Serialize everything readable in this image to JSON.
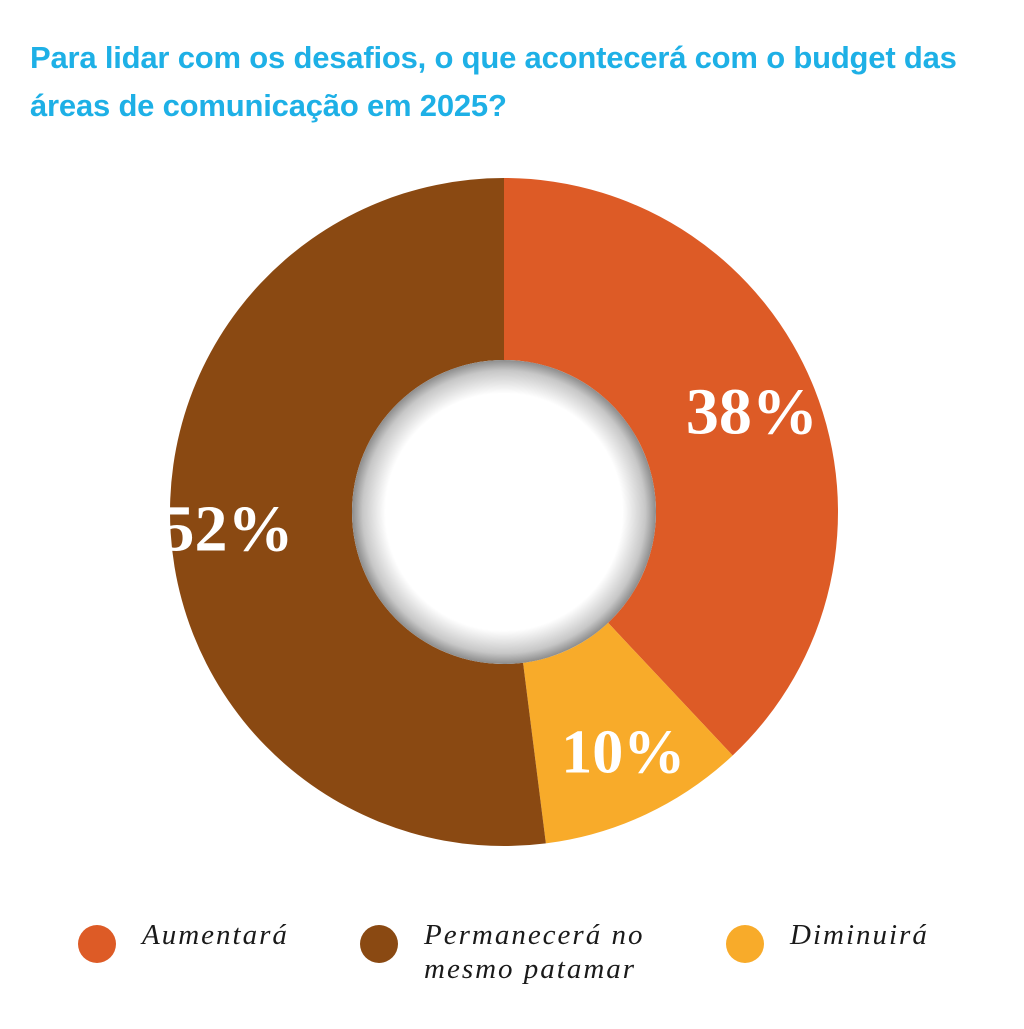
{
  "colors": {
    "title": "#1eb0e6",
    "aumentara": "#dd5b26",
    "permanecera": "#8a4912",
    "diminuira": "#f8ab2a",
    "background": "#ffffff"
  },
  "chart_data": {
    "type": "pie",
    "variant": "donut",
    "title": "Para lidar com os desafios, o que acontecerá com o budget das áreas de comunicação em 2025?",
    "categories": [
      "Aumentará",
      "Diminuirá",
      "Permanecerá no mesmo patamar"
    ],
    "values": [
      38,
      10,
      52
    ],
    "labels": [
      "38%",
      "10%",
      "52%"
    ],
    "unit": "%",
    "legend": {
      "placement": "bottom",
      "entries": [
        "Aumentará",
        "Permanecerá no\nmesmo patamar",
        "Diminuirá"
      ]
    }
  }
}
